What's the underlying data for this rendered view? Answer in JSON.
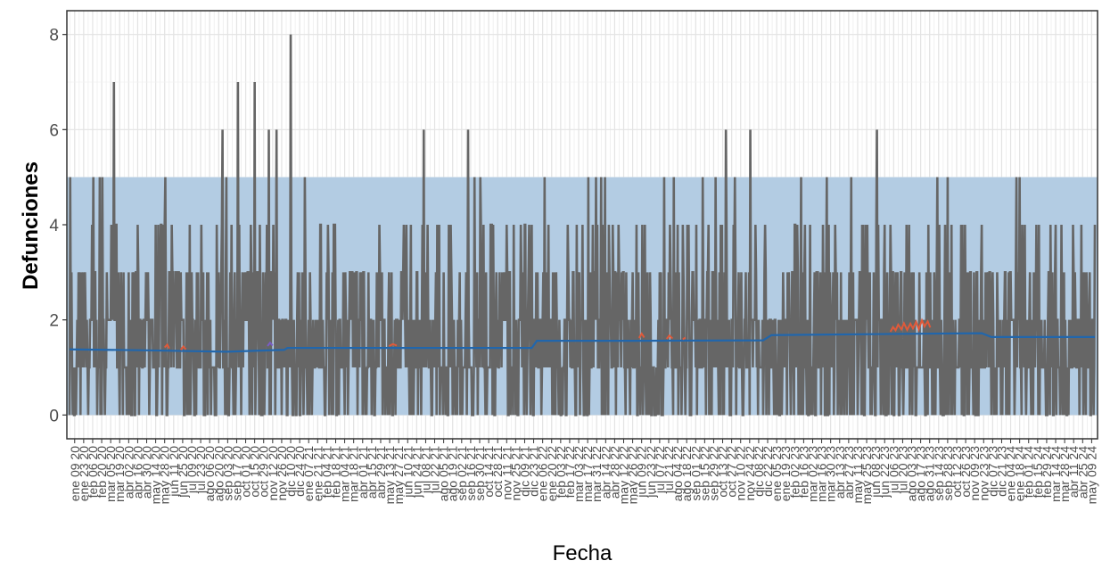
{
  "chart_data": {
    "type": "line",
    "xlabel": "Fecha",
    "ylabel": "Defunciones",
    "ylim": [
      -0.5,
      8.5
    ],
    "y_ticks": [
      0,
      2,
      4,
      6,
      8
    ],
    "x_range": [
      "2020-01-01",
      "2024-05-14"
    ],
    "band": {
      "y_min": 0,
      "y_max": 5,
      "color": "#b3cce3"
    },
    "grid": "on",
    "background": "#ffffff",
    "x_tick_labels": [
      "ene 09 20",
      "ene 23 20",
      "feb 06 20",
      "feb 20 20",
      "mar 05 20",
      "mar 19 20",
      "abr 02 20",
      "abr 16 20",
      "abr 30 20",
      "may 14 20",
      "may 28 20",
      "jun 11 20",
      "jun 25 20",
      "jul 09 20",
      "jul 23 20",
      "ago 06 20",
      "ago 20 20",
      "sep 03 20",
      "sep 17 20",
      "oct 01 20",
      "oct 15 20",
      "oct 29 20",
      "nov 12 20",
      "nov 26 20",
      "dic 10 20",
      "dic 24 20",
      "ene 07 21",
      "ene 21 21",
      "feb 04 21",
      "feb 18 21",
      "mar 04 21",
      "mar 18 21",
      "abr 01 21",
      "abr 15 21",
      "abr 29 21",
      "may 13 21",
      "may 27 21",
      "jun 10 21",
      "jun 24 21",
      "jul 08 21",
      "jul 22 21",
      "ago 05 21",
      "ago 19 21",
      "sep 02 21",
      "sep 16 21",
      "sep 30 21",
      "oct 14 21",
      "oct 28 21",
      "nov 11 21",
      "nov 25 21",
      "dic 09 21",
      "dic 23 21",
      "ene 06 22",
      "ene 20 22",
      "feb 03 22",
      "feb 17 22",
      "mar 03 22",
      "mar 17 22",
      "mar 31 22",
      "abr 14 22",
      "abr 28 22",
      "may 12 22",
      "may 26 22",
      "jun 09 22",
      "jun 23 22",
      "jul 07 22",
      "jul 21 22",
      "ago 04 22",
      "ago 18 22",
      "sep 01 22",
      "sep 15 22",
      "sep 29 22",
      "oct 13 22",
      "oct 27 22",
      "nov 10 22",
      "nov 24 22",
      "dic 08 22",
      "dic 22 22",
      "ene 05 23",
      "ene 19 23",
      "feb 02 23",
      "feb 16 23",
      "mar 02 23",
      "mar 16 23",
      "mar 30 23",
      "abr 13 23",
      "abr 27 23",
      "may 11 23",
      "may 25 23",
      "jun 08 23",
      "jun 22 23",
      "jul 06 23",
      "jul 20 23",
      "ago 03 23",
      "ago 17 23",
      "ago 31 23",
      "sep 14 23",
      "sep 28 23",
      "oct 12 23",
      "oct 26 23",
      "nov 09 23",
      "nov 23 23",
      "dic 07 23",
      "dic 21 23",
      "ene 04 24",
      "ene 18 24",
      "feb 01 24",
      "feb 15 24",
      "feb 29 24",
      "mar 14 24",
      "mar 28 24",
      "abr 11 24",
      "abr 25 24",
      "may 09 24"
    ],
    "series": [
      {
        "role": "daily deaths",
        "color": "#666666",
        "baseline_mean": 1.6,
        "peaks": [
          {
            "x": "2020-01-02",
            "y": 5
          },
          {
            "x": "2020-02-07",
            "y": 5
          },
          {
            "x": "2020-02-17",
            "y": 5
          },
          {
            "x": "2020-02-21",
            "y": 5
          },
          {
            "x": "2020-03-10",
            "y": 7
          },
          {
            "x": "2020-05-29",
            "y": 5
          },
          {
            "x": "2020-08-26",
            "y": 6
          },
          {
            "x": "2020-09-01",
            "y": 5
          },
          {
            "x": "2020-09-19",
            "y": 7
          },
          {
            "x": "2020-10-15",
            "y": 7
          },
          {
            "x": "2020-11-06",
            "y": 6
          },
          {
            "x": "2020-11-18",
            "y": 6
          },
          {
            "x": "2020-12-10",
            "y": 8
          },
          {
            "x": "2021-01-01",
            "y": 5
          },
          {
            "x": "2021-07-05",
            "y": 6
          },
          {
            "x": "2021-09-12",
            "y": 6
          },
          {
            "x": "2021-09-22",
            "y": 5
          },
          {
            "x": "2021-10-01",
            "y": 5
          },
          {
            "x": "2022-01-09",
            "y": 5
          },
          {
            "x": "2022-03-18",
            "y": 5
          },
          {
            "x": "2022-03-30",
            "y": 5
          },
          {
            "x": "2022-04-07",
            "y": 5
          },
          {
            "x": "2022-04-13",
            "y": 5
          },
          {
            "x": "2022-07-14",
            "y": 5
          },
          {
            "x": "2022-07-29",
            "y": 5
          },
          {
            "x": "2022-09-12",
            "y": 5
          },
          {
            "x": "2022-10-02",
            "y": 5
          },
          {
            "x": "2022-10-18",
            "y": 6
          },
          {
            "x": "2022-11-01",
            "y": 5
          },
          {
            "x": "2022-11-25",
            "y": 6
          },
          {
            "x": "2023-02-12",
            "y": 5
          },
          {
            "x": "2023-03-24",
            "y": 5
          },
          {
            "x": "2023-05-01",
            "y": 5
          },
          {
            "x": "2023-06-10",
            "y": 6
          },
          {
            "x": "2023-09-12",
            "y": 5
          },
          {
            "x": "2023-09-28",
            "y": 5
          },
          {
            "x": "2024-01-13",
            "y": 5
          },
          {
            "x": "2024-01-18",
            "y": 5
          }
        ]
      },
      {
        "role": "trend",
        "color": "#2166ac",
        "points": [
          {
            "x": "2020-01-01",
            "y": 1.38
          },
          {
            "x": "2020-05-01",
            "y": 1.36
          },
          {
            "x": "2020-09-01",
            "y": 1.33
          },
          {
            "x": "2020-11-30",
            "y": 1.37
          },
          {
            "x": "2020-12-05",
            "y": 1.41
          },
          {
            "x": "2021-05-01",
            "y": 1.41
          },
          {
            "x": "2021-12-20",
            "y": 1.41
          },
          {
            "x": "2021-12-28",
            "y": 1.56
          },
          {
            "x": "2022-06-01",
            "y": 1.56
          },
          {
            "x": "2022-12-15",
            "y": 1.57
          },
          {
            "x": "2022-12-28",
            "y": 1.68
          },
          {
            "x": "2023-06-01",
            "y": 1.7
          },
          {
            "x": "2023-11-20",
            "y": 1.72
          },
          {
            "x": "2023-12-05",
            "y": 1.64
          },
          {
            "x": "2024-05-14",
            "y": 1.64
          }
        ]
      },
      {
        "role": "highlight",
        "color": "#e05a3a",
        "segments": [
          [
            {
              "x": "2020-05-28",
              "y": 1.42
            },
            {
              "x": "2020-06-01",
              "y": 1.48
            },
            {
              "x": "2020-06-04",
              "y": 1.4
            }
          ],
          [
            {
              "x": "2020-06-22",
              "y": 1.37
            },
            {
              "x": "2020-06-26",
              "y": 1.44
            },
            {
              "x": "2020-06-30",
              "y": 1.38
            }
          ],
          [
            {
              "x": "2021-05-12",
              "y": 1.45
            },
            {
              "x": "2021-05-18",
              "y": 1.49
            },
            {
              "x": "2021-05-24",
              "y": 1.46
            }
          ],
          [
            {
              "x": "2022-06-05",
              "y": 1.62
            },
            {
              "x": "2022-06-09",
              "y": 1.71
            },
            {
              "x": "2022-06-13",
              "y": 1.63
            }
          ],
          [
            {
              "x": "2022-07-18",
              "y": 1.6
            },
            {
              "x": "2022-07-22",
              "y": 1.67
            },
            {
              "x": "2022-07-27",
              "y": 1.61
            }
          ],
          [
            {
              "x": "2022-08-12",
              "y": 1.59
            },
            {
              "x": "2022-08-16",
              "y": 1.63
            }
          ],
          [
            {
              "x": "2023-07-01",
              "y": 1.75
            },
            {
              "x": "2023-07-05",
              "y": 1.85
            },
            {
              "x": "2023-07-09",
              "y": 1.78
            },
            {
              "x": "2023-07-13",
              "y": 1.9
            },
            {
              "x": "2023-07-18",
              "y": 1.8
            },
            {
              "x": "2023-07-22",
              "y": 1.93
            },
            {
              "x": "2023-07-27",
              "y": 1.79
            },
            {
              "x": "2023-08-01",
              "y": 1.92
            },
            {
              "x": "2023-08-05",
              "y": 1.82
            },
            {
              "x": "2023-08-10",
              "y": 1.96
            },
            {
              "x": "2023-08-14",
              "y": 1.8
            },
            {
              "x": "2023-08-19",
              "y": 1.99
            },
            {
              "x": "2023-08-23",
              "y": 1.86
            },
            {
              "x": "2023-08-28",
              "y": 1.97
            },
            {
              "x": "2023-09-01",
              "y": 1.84
            }
          ]
        ]
      },
      {
        "role": "highlight-2",
        "color": "#7b5cc7",
        "segments": [
          [
            {
              "x": "2020-11-04",
              "y": 1.45
            },
            {
              "x": "2020-11-08",
              "y": 1.52
            },
            {
              "x": "2020-11-12",
              "y": 1.46
            }
          ]
        ]
      }
    ]
  }
}
